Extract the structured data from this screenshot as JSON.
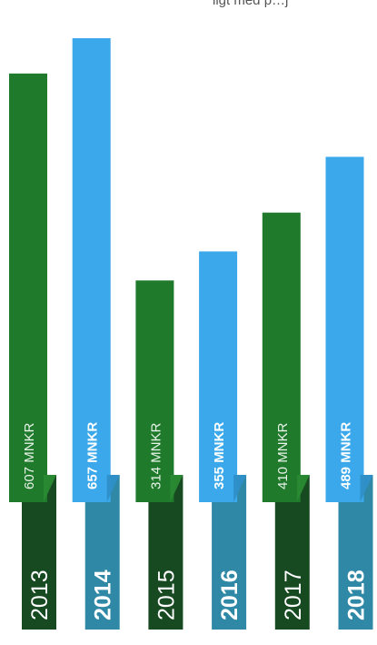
{
  "header": {
    "caption": "ligt med p…j"
  },
  "colors": {
    "green_top": "#1f7a2b",
    "green_top_shade": "#2a8a33",
    "green_base": "#184a22",
    "blue_top": "#3aa8ea",
    "blue_top_shade": "#2f8fc8",
    "blue_base": "#2f88a5",
    "label_light": "#e8f3ea",
    "label_bold": "#ffffff"
  },
  "chart_data": {
    "type": "bar",
    "categories": [
      "2013",
      "2014",
      "2015",
      "2016",
      "2017",
      "2018"
    ],
    "values": [
      607,
      657,
      314,
      355,
      410,
      489
    ],
    "unit": "MNKR",
    "value_labels": [
      "607 MNKR",
      "657 MNKR",
      "314 MNKR",
      "355 MNKR",
      "410 MNKR",
      "489 MNKR"
    ],
    "series_colors": [
      "green",
      "blue",
      "green",
      "blue",
      "green",
      "blue"
    ],
    "label_weight": [
      "normal",
      "bold",
      "normal",
      "bold",
      "normal",
      "bold"
    ],
    "title": "",
    "xlabel": "",
    "ylabel": "",
    "legend": "none",
    "grid": false
  }
}
